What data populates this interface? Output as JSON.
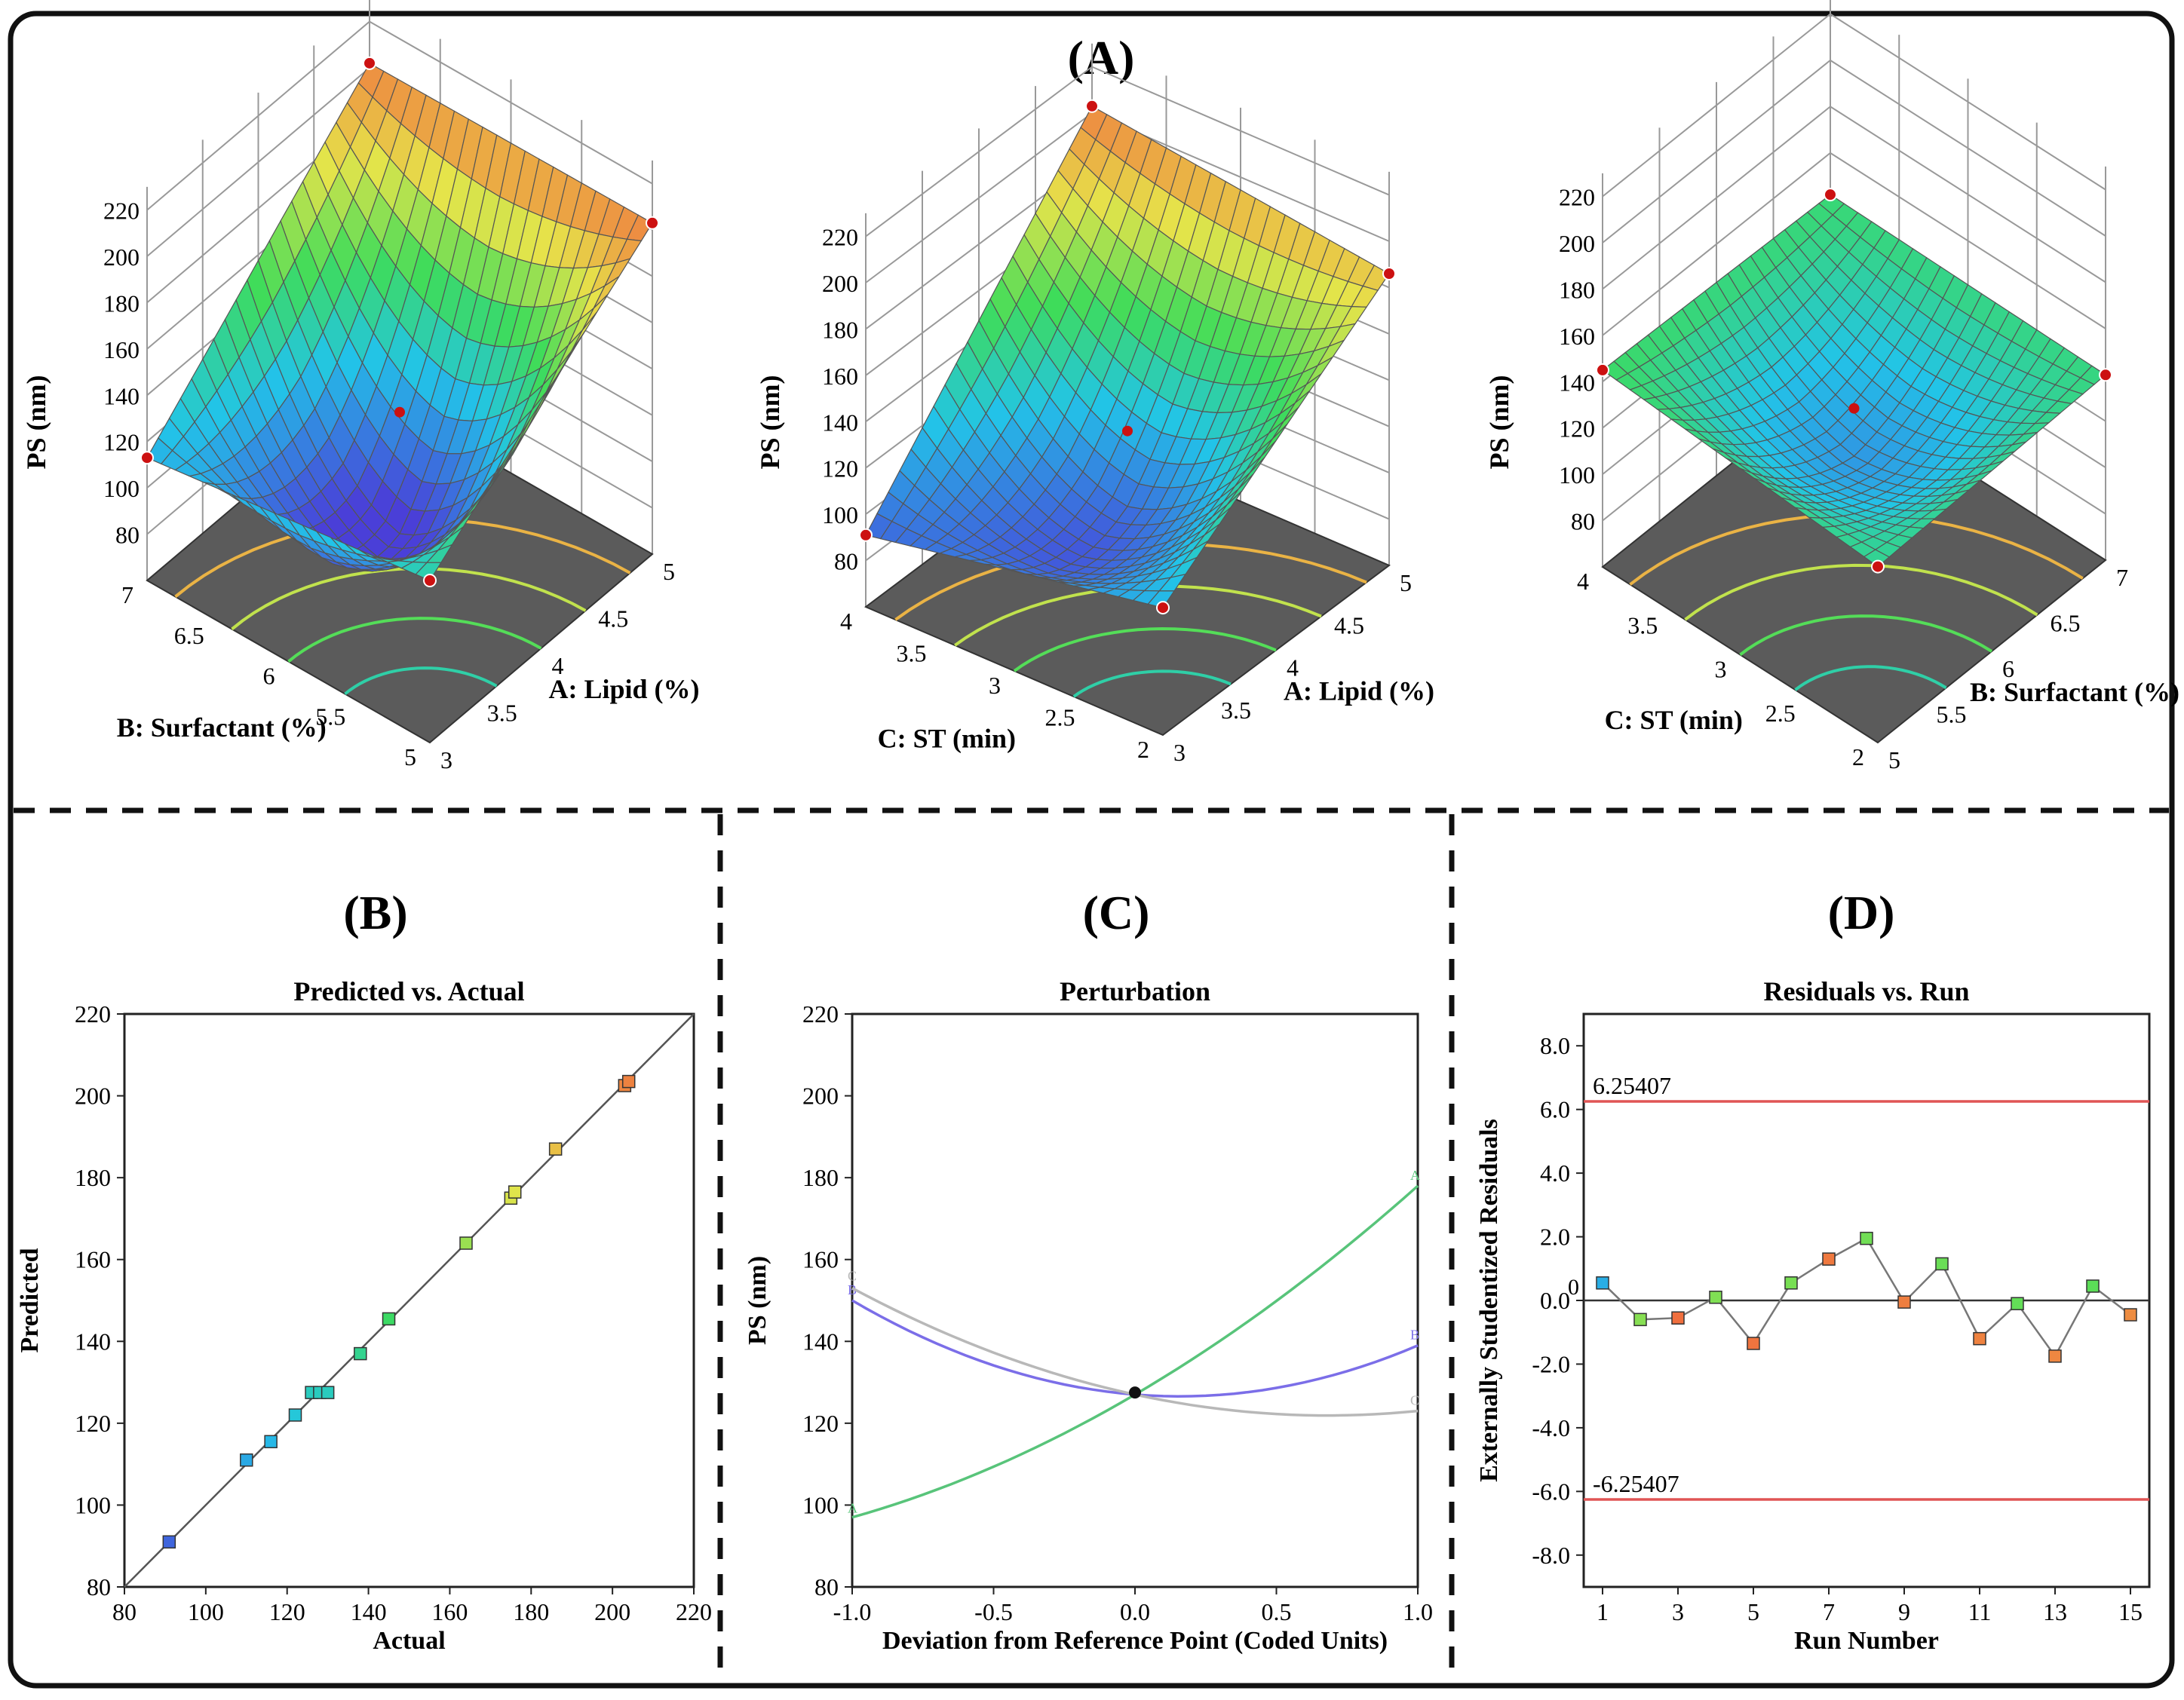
{
  "panels": {
    "A": "(A)",
    "B": "(B)",
    "C": "(C)",
    "D": "(D)"
  },
  "colors": {
    "frame": "#111111",
    "surface_low": "#4a3fd8",
    "surface_mid_low": "#22c4e8",
    "surface_mid": "#3edc5a",
    "surface_mid_high": "#e6e44a",
    "surface_high": "#f06a3e",
    "floor": "#5b5b5b",
    "design_point": "#cc1111",
    "limit_line": "#e05555",
    "series_A": "#58c47a",
    "series_B": "#7b6ee8",
    "series_C": "#b8b8b8",
    "fit_line": "#555555"
  },
  "chart_data": [
    {
      "type": "surface3d",
      "panel": "A",
      "x_label": "A: Lipid (%)",
      "y_label": "B: Surfactant (%)",
      "z_label": "PS (nm)",
      "x_ticks": [
        "3",
        "3.5",
        "4",
        "4.5",
        "5"
      ],
      "y_ticks": [
        "5",
        "5.5",
        "6",
        "6.5",
        "7"
      ],
      "z_ticks": [
        "80",
        "100",
        "120",
        "140",
        "160",
        "180",
        "200",
        "220"
      ],
      "x_range": [
        3,
        5
      ],
      "y_range": [
        5,
        7
      ],
      "z_range": [
        80,
        220
      ],
      "corners": {
        "x_lo_y_lo": 130,
        "x_hi_y_lo": 203,
        "x_lo_y_hi": 113,
        "x_hi_y_hi": 202
      },
      "center_point": 127
    },
    {
      "type": "surface3d",
      "panel": "A",
      "x_label": "A: Lipid (%)",
      "y_label": "C: ST (min)",
      "z_label": "PS (nm)",
      "x_ticks": [
        "3",
        "3.5",
        "4",
        "4.5",
        "5"
      ],
      "y_ticks": [
        "2",
        "2.5",
        "3",
        "3.5",
        "4"
      ],
      "z_ticks": [
        "80",
        "100",
        "120",
        "140",
        "160",
        "180",
        "200",
        "220"
      ],
      "x_range": [
        3,
        5
      ],
      "y_range": [
        2,
        4
      ],
      "z_range": [
        80,
        220
      ],
      "corners": {
        "x_lo_y_lo": 115,
        "x_hi_y_lo": 186,
        "x_lo_y_hi": 91,
        "x_hi_y_hi": 203
      },
      "center_point": 127
    },
    {
      "type": "surface3d",
      "panel": "A",
      "x_label": "B: Surfactant (%)",
      "y_label": "C: ST (min)",
      "z_label": "PS (nm)",
      "x_ticks": [
        "5",
        "5.5",
        "6",
        "6.5",
        "7"
      ],
      "y_ticks": [
        "2",
        "2.5",
        "3",
        "3.5",
        "4"
      ],
      "z_ticks": [
        "80",
        "100",
        "120",
        "140",
        "160",
        "180",
        "200",
        "220"
      ],
      "x_range": [
        5,
        7
      ],
      "y_range": [
        2,
        4
      ],
      "z_range": [
        80,
        220
      ],
      "corners": {
        "x_lo_y_lo": 136,
        "x_hi_y_lo": 140,
        "x_lo_y_hi": 145,
        "x_hi_y_hi": 142
      },
      "center_point": 127
    },
    {
      "type": "scatter",
      "panel": "B",
      "title": "Predicted vs. Actual",
      "xlabel": "Actual",
      "ylabel": "Predicted",
      "xlim": [
        80,
        220
      ],
      "ylim": [
        80,
        220
      ],
      "x_ticks": [
        "80",
        "100",
        "120",
        "140",
        "160",
        "180",
        "200",
        "220"
      ],
      "y_ticks": [
        "80",
        "100",
        "120",
        "140",
        "160",
        "180",
        "200",
        "220"
      ],
      "points": [
        {
          "x": 91,
          "y": 91
        },
        {
          "x": 110,
          "y": 111
        },
        {
          "x": 116,
          "y": 115.5
        },
        {
          "x": 122,
          "y": 122
        },
        {
          "x": 126,
          "y": 127.5
        },
        {
          "x": 128,
          "y": 127.5
        },
        {
          "x": 130,
          "y": 127.5
        },
        {
          "x": 138,
          "y": 137
        },
        {
          "x": 145,
          "y": 145.5
        },
        {
          "x": 164,
          "y": 164
        },
        {
          "x": 175,
          "y": 175
        },
        {
          "x": 176,
          "y": 176.5
        },
        {
          "x": 186,
          "y": 187
        },
        {
          "x": 203,
          "y": 202.5
        },
        {
          "x": 204,
          "y": 203.5
        }
      ],
      "fit_line": [
        [
          80,
          80
        ],
        [
          220,
          220
        ]
      ]
    },
    {
      "type": "line",
      "panel": "C",
      "title": "Perturbation",
      "xlabel": "Deviation from Reference Point (Coded Units)",
      "ylabel": "PS (nm)",
      "xlim": [
        -1.0,
        1.0
      ],
      "ylim": [
        80,
        220
      ],
      "x_ticks": [
        "-1.0",
        "-0.5",
        "0.0",
        "0.5",
        "1.0"
      ],
      "y_ticks": [
        "80",
        "100",
        "120",
        "140",
        "160",
        "180",
        "200",
        "220"
      ],
      "series": [
        {
          "name": "A",
          "x": [
            -1.0,
            -0.5,
            0.0,
            0.5,
            1.0
          ],
          "values": [
            97,
            109,
            127,
            149,
            178
          ]
        },
        {
          "name": "B",
          "x": [
            -1.0,
            -0.5,
            0.0,
            0.5,
            1.0
          ],
          "values": [
            150,
            135,
            127,
            129,
            139
          ]
        },
        {
          "name": "C",
          "x": [
            -1.0,
            -0.5,
            0.0,
            0.5,
            1.0
          ],
          "values": [
            153,
            137,
            127,
            123,
            123
          ]
        }
      ],
      "reference_point": {
        "x": 0.0,
        "y": 127.5
      }
    },
    {
      "type": "line",
      "panel": "D",
      "title": "Residuals vs. Run",
      "xlabel": "Run Number",
      "ylabel": "Externally Studentized Residuals",
      "xlim": [
        0.5,
        15.5
      ],
      "ylim": [
        -9,
        9
      ],
      "x_ticks": [
        "1",
        "3",
        "5",
        "7",
        "9",
        "11",
        "13",
        "15"
      ],
      "y_ticks": [
        "-8.0",
        "-6.0",
        "-4.0",
        "-2.0",
        "0.0",
        "2.0",
        "4.0",
        "6.0",
        "8.0"
      ],
      "x": [
        1,
        2,
        3,
        4,
        5,
        6,
        7,
        8,
        9,
        10,
        11,
        12,
        13,
        14,
        15
      ],
      "values": [
        0.55,
        -0.6,
        -0.55,
        0.1,
        -1.35,
        0.55,
        1.3,
        1.95,
        -0.05,
        1.15,
        -1.2,
        -0.1,
        -1.75,
        0.45,
        -0.45
      ],
      "limits": {
        "upper": 6.25407,
        "lower": -6.25407,
        "upper_label": "6.25407",
        "lower_label": "-6.25407",
        "zero_label": "0"
      }
    }
  ]
}
